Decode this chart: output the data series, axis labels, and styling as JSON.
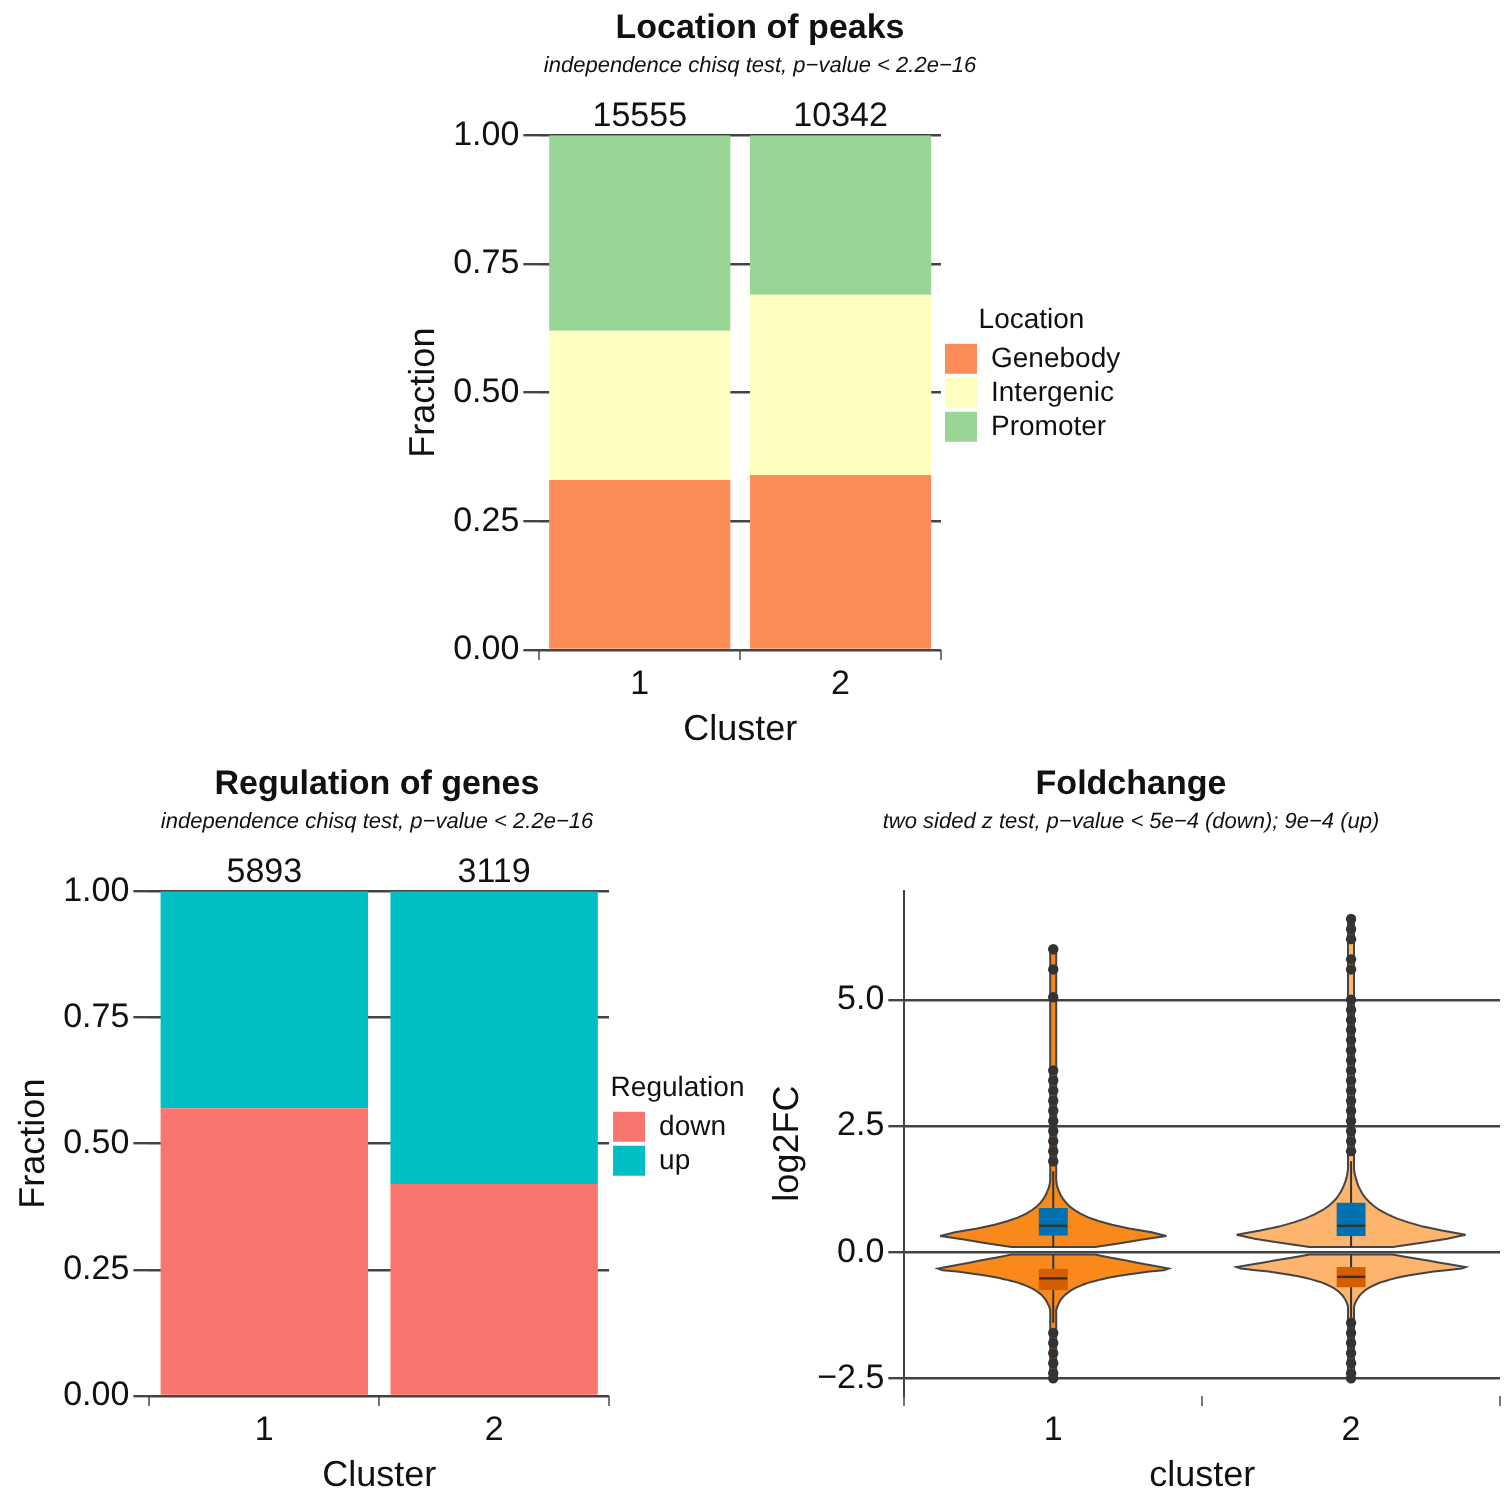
{
  "chart_data": [
    {
      "type": "bar",
      "title": "Location of peaks",
      "subtitle": "independence chisq test, p−value < 2.2e−16",
      "xlabel": "Cluster",
      "ylabel": "Fraction",
      "legend_title": "Location",
      "categories": [
        "1",
        "2"
      ],
      "series": [
        {
          "name": "Genebody",
          "color": "#fc8d59",
          "values": [
            0.33,
            0.34
          ]
        },
        {
          "name": "Intergenic",
          "color": "#ffffbf",
          "values": [
            0.29,
            0.35
          ]
        },
        {
          "name": "Promoter",
          "color": "#99d594",
          "values": [
            0.38,
            0.31
          ]
        }
      ],
      "stacked": true,
      "ylim": [
        0,
        1
      ],
      "yticks": [
        {
          "value": 0,
          "label": "0.00"
        },
        {
          "value": 0.25,
          "label": "0.25"
        },
        {
          "value": 0.5,
          "label": "0.50"
        },
        {
          "value": 0.75,
          "label": "0.75"
        },
        {
          "value": 1,
          "label": "1.00"
        }
      ],
      "grid": "y",
      "legend": "right",
      "annotations": [
        {
          "text": "15555",
          "x": "1",
          "y": 1
        },
        {
          "text": "10342",
          "x": "2",
          "y": 1
        }
      ]
    },
    {
      "type": "bar",
      "title": "Regulation of genes",
      "subtitle": "independence chisq test, p−value < 2.2e−16",
      "xlabel": "Cluster",
      "ylabel": "Fraction",
      "legend_title": "Regulation",
      "categories": [
        "1",
        "2"
      ],
      "series": [
        {
          "name": "down",
          "color": "#f8766d",
          "values": [
            0.57,
            0.42
          ]
        },
        {
          "name": "up",
          "color": "#00bfc4",
          "values": [
            0.43,
            0.58
          ]
        }
      ],
      "stacked": true,
      "ylim": [
        0,
        1
      ],
      "yticks": [
        {
          "value": 0,
          "label": "0.00"
        },
        {
          "value": 0.25,
          "label": "0.25"
        },
        {
          "value": 0.5,
          "label": "0.50"
        },
        {
          "value": 0.75,
          "label": "0.75"
        },
        {
          "value": 1,
          "label": "1.00"
        }
      ],
      "grid": "y",
      "legend": "right",
      "annotations": [
        {
          "text": "5893",
          "x": "1",
          "y": 1
        },
        {
          "text": "3119",
          "x": "2",
          "y": 1
        }
      ]
    },
    {
      "type": "box",
      "title": "Foldchange",
      "subtitle": "two sided z test, p−value < 5e−4 (down); 9e−4 (up)",
      "xlabel": "cluster",
      "ylabel": "log2FC",
      "categories": [
        "1",
        "2"
      ],
      "colors": [
        "#f8891a",
        "#fdb46c"
      ],
      "series": [
        {
          "color": "#0072b2",
          "boxes": [
            {
              "low": 0.1,
              "q1": 0.34,
              "median": 0.52,
              "q3": 0.86,
              "high": 1.6,
              "outliers": [
                1.8,
                2.0,
                2.2,
                2.4,
                2.6,
                2.8,
                3.0,
                3.2,
                3.4,
                3.6,
                5.05,
                5.6,
                6.0
              ]
            },
            {
              "low": 0.1,
              "q1": 0.33,
              "median": 0.52,
              "q3": 0.97,
              "high": 1.8,
              "outliers": [
                2.0,
                2.2,
                2.4,
                2.6,
                2.8,
                3.0,
                3.2,
                3.4,
                3.6,
                3.8,
                4.0,
                4.2,
                4.4,
                4.6,
                4.8,
                5.0,
                5.6,
                5.8,
                6.2,
                6.4,
                6.6
              ]
            }
          ]
        },
        {
          "color": "#d55e00",
          "boxes": [
            {
              "low": -1.4,
              "q1": -0.74,
              "median": -0.52,
              "q3": -0.34,
              "high": -0.05,
              "outliers": [
                -1.6,
                -1.8,
                -2.0,
                -2.2,
                -2.4,
                -2.5
              ]
            },
            {
              "low": -1.3,
              "q1": -0.69,
              "median": -0.49,
              "q3": -0.31,
              "high": -0.05,
              "outliers": [
                -1.4,
                -1.6,
                -1.8,
                -2.0,
                -2.2,
                -2.4,
                -2.5
              ]
            }
          ]
        }
      ],
      "ylim": [
        -2.85,
        7.15
      ],
      "yticks": [
        {
          "value": -2.5,
          "label": "−2.5"
        },
        {
          "value": 0,
          "label": "0.0"
        },
        {
          "value": 2.5,
          "label": "2.5"
        },
        {
          "value": 5,
          "label": "5.0"
        }
      ],
      "grid": "y"
    }
  ]
}
